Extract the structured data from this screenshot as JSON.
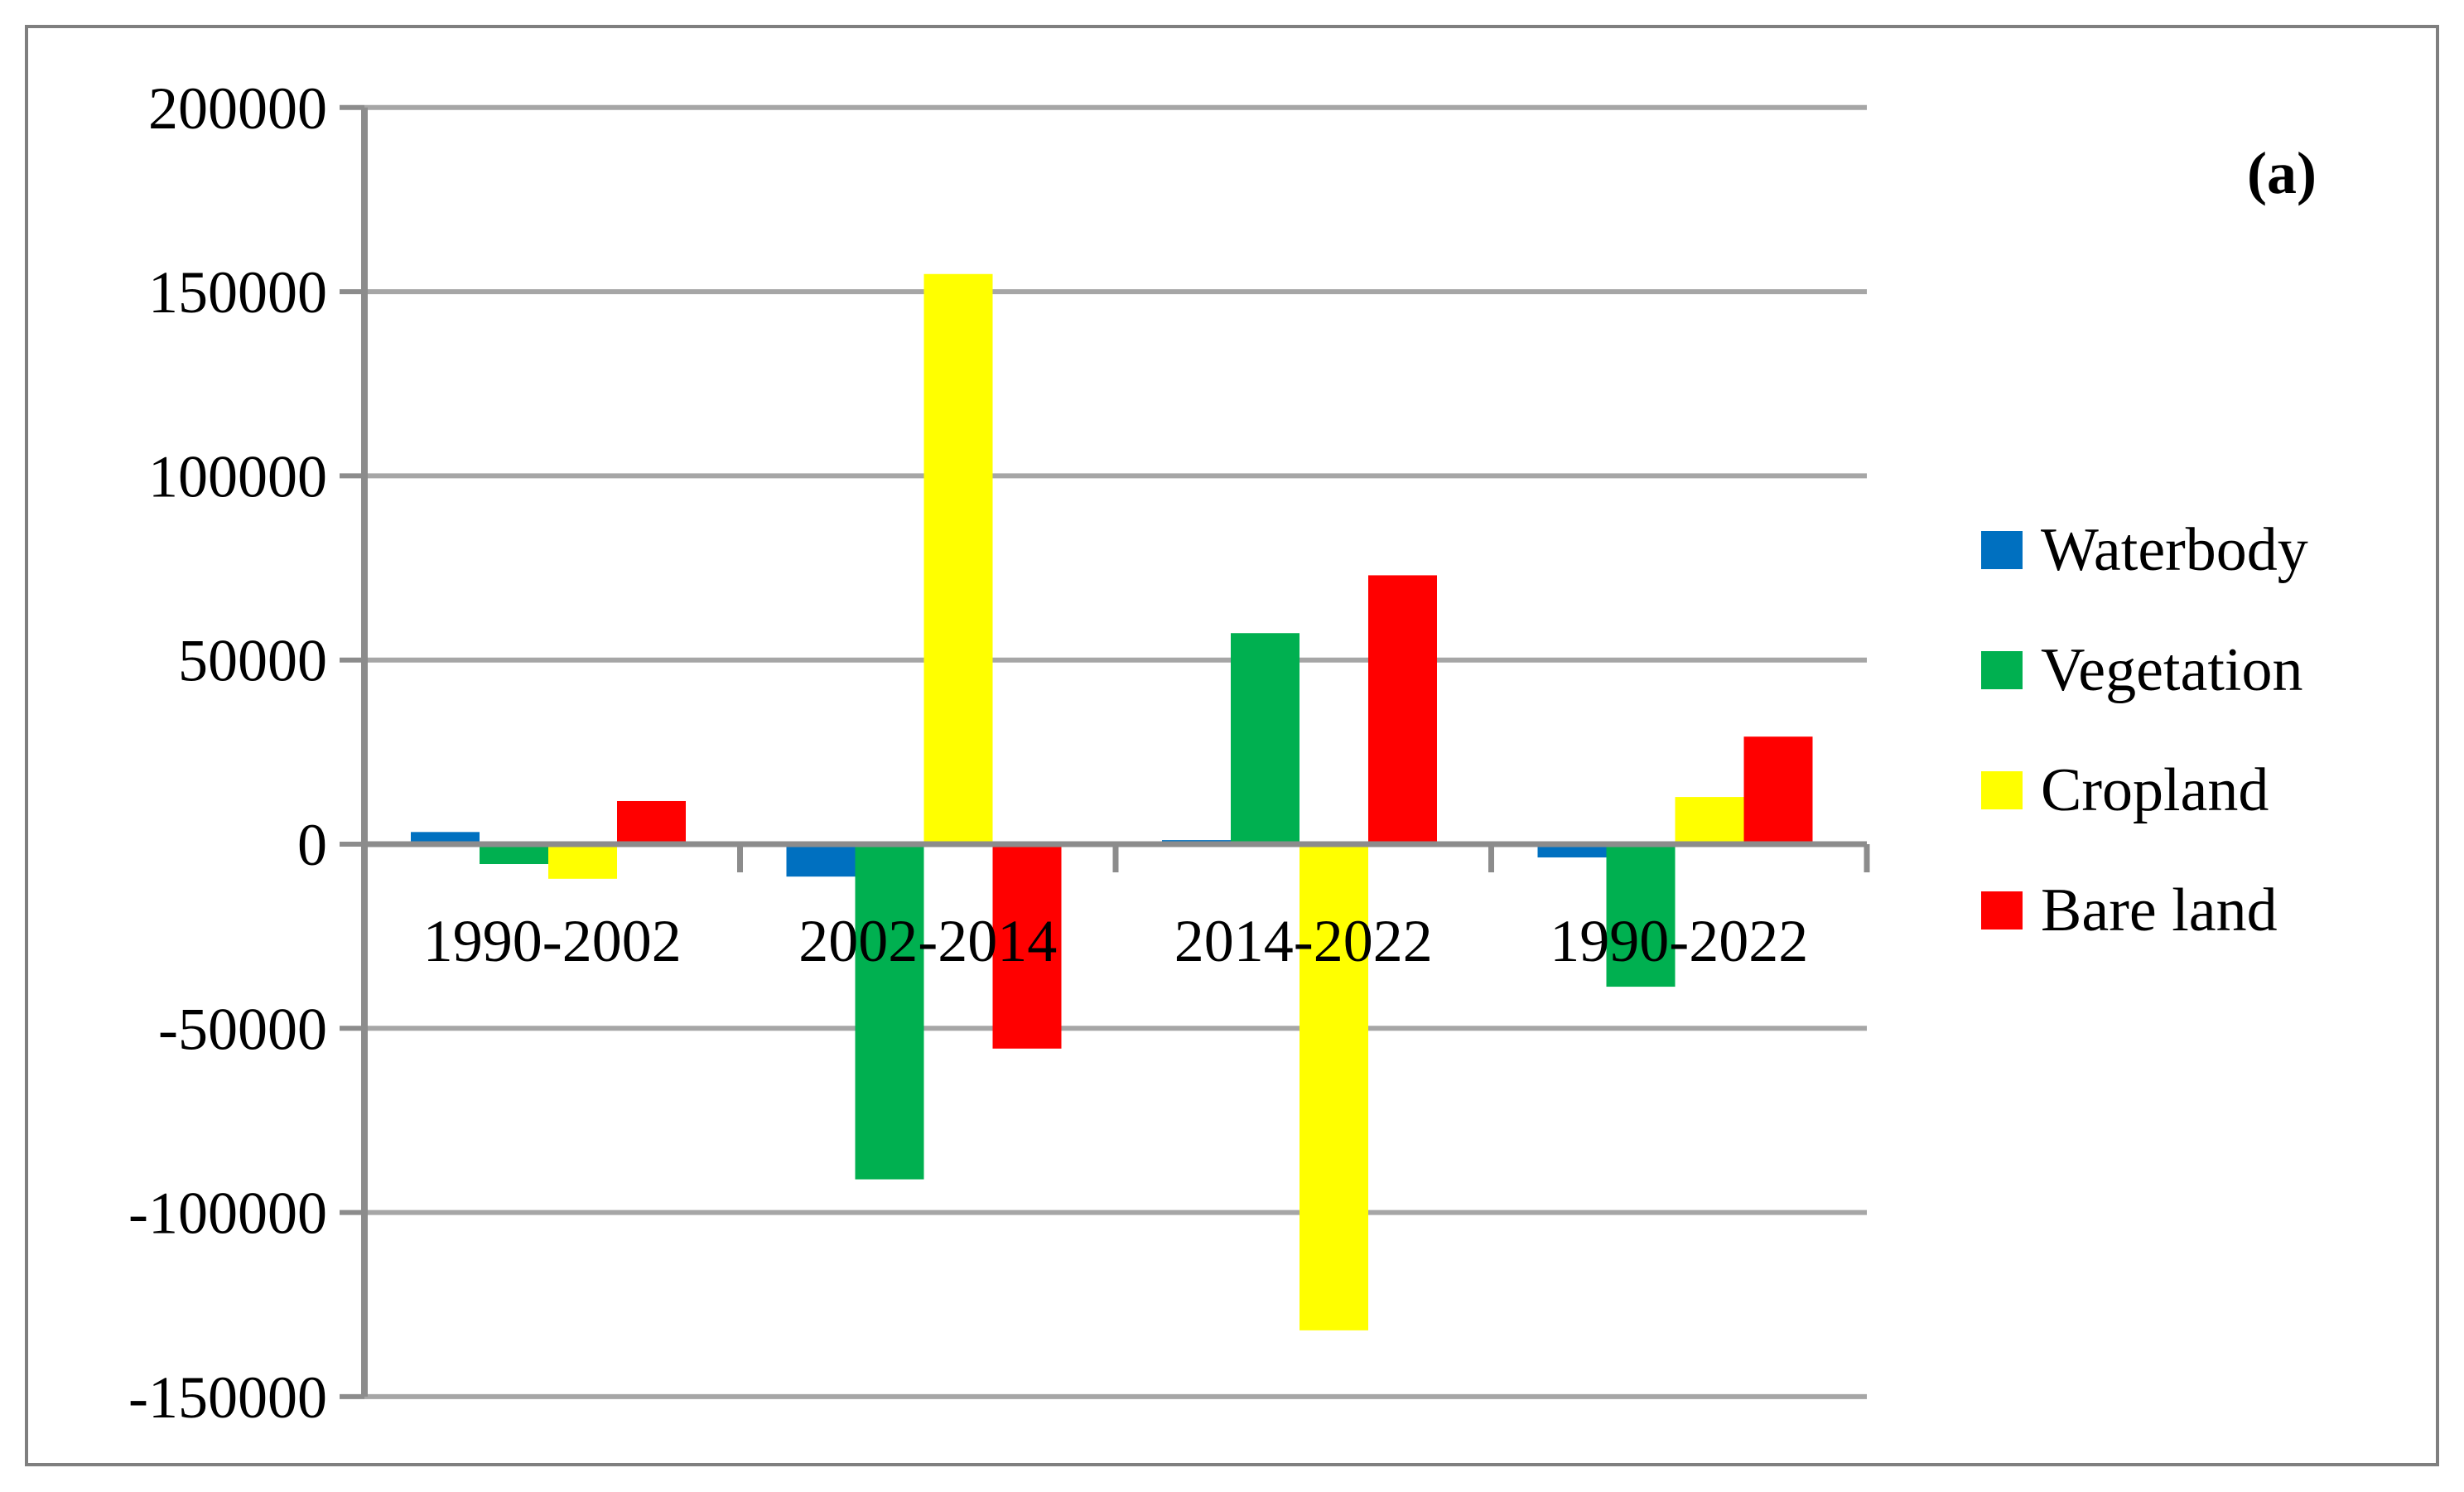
{
  "chart_data": {
    "type": "bar",
    "title": "",
    "annotation": "(a)",
    "categories": [
      "1990-2002",
      "2002-2014",
      "2014-2022",
      "1990-2022"
    ],
    "series": [
      {
        "name": "Waterbody",
        "color": "#0070C0",
        "values": [
          3300,
          -8800,
          1100,
          -3600
        ]
      },
      {
        "name": "Vegetation",
        "color": "#00B050",
        "values": [
          -5400,
          -91000,
          57300,
          -38700
        ]
      },
      {
        "name": "Cropland",
        "color": "#FFFF00",
        "values": [
          -9400,
          154800,
          -132000,
          12800
        ]
      },
      {
        "name": "Bare land",
        "color": "#FF0000",
        "values": [
          11700,
          -55500,
          73000,
          29200
        ]
      }
    ],
    "y_axis": {
      "min": -150000,
      "max": 200000,
      "step": 50000,
      "tick_labels": [
        "200000",
        "150000",
        "100000",
        "50000",
        "0",
        "-50000",
        "-100000",
        "-150000"
      ]
    },
    "x_axis": {
      "tick_labels": [
        "1990-2002",
        "2002-2014",
        "2014-2022",
        "1990-2022"
      ]
    },
    "grid": true,
    "legend": {
      "position": "right",
      "entries": [
        "Waterbody",
        "Vegetation",
        "Cropland",
        "Bare land"
      ]
    },
    "axis_color": "#8C8C8C",
    "grid_color": "#A6A6A6"
  }
}
